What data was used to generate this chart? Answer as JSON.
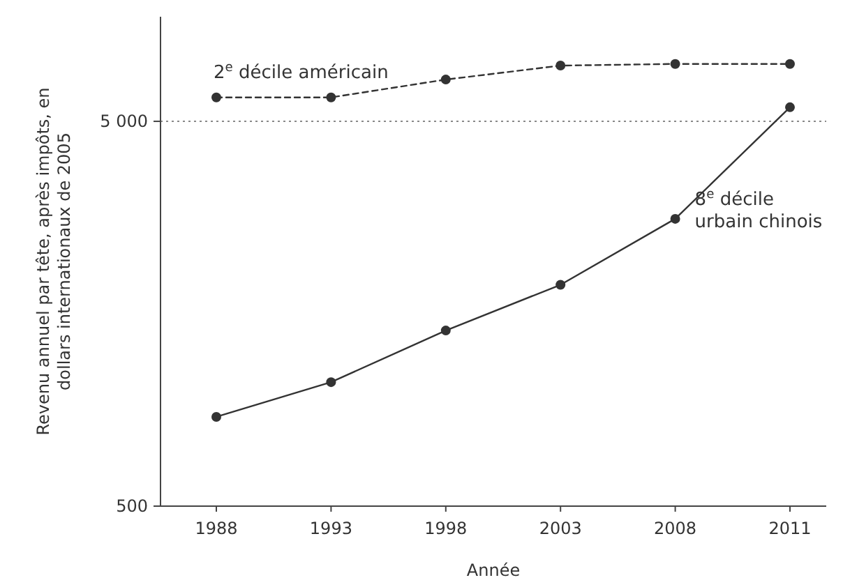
{
  "chart_data": {
    "type": "line",
    "xlabel": "Année",
    "ylabel": "Revenu annuel par tête, après impôts, en dollars internationaux de 2005",
    "categories": [
      "1988",
      "1993",
      "1998",
      "2003",
      "2008",
      "2011"
    ],
    "series": [
      {
        "name": "2$^{e}$ décile américain",
        "color": "#333333",
        "line_style": "dashed",
        "values": [
          5770,
          5770,
          6420,
          6980,
          7050,
          7050
        ]
      },
      {
        "name": "8$^{e}$ décile urbain chinois",
        "color": "#333333",
        "line_style": "solid",
        "values": [
          853,
          1050,
          1430,
          1880,
          2790,
          5440
        ]
      }
    ],
    "log": "y",
    "ylim": [
      500,
      9350
    ],
    "yticks": [
      500,
      {
        "value": 5000,
        "label": "5 000"
      }
    ],
    "grid": "y",
    "marker": "circle",
    "legend": false
  }
}
